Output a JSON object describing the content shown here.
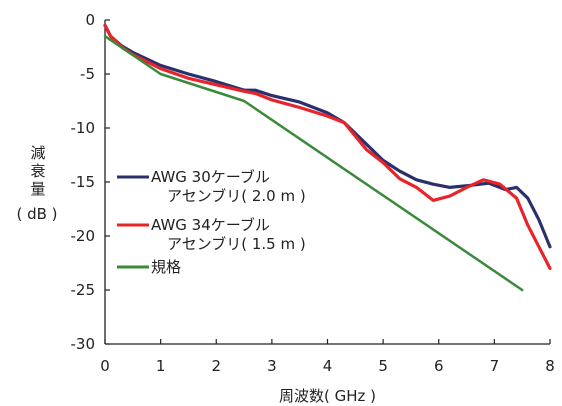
{
  "chart_data": {
    "type": "line",
    "xlabel": "周波数( GHz )",
    "ylabel_lines": [
      "減",
      "衰",
      "量",
      "( dB )"
    ],
    "xlim": [
      0,
      8
    ],
    "ylim": [
      -30,
      0
    ],
    "x_ticks": [
      "0",
      "1",
      "2",
      "3",
      "4",
      "5",
      "6",
      "7",
      "8"
    ],
    "y_ticks": [
      "0",
      "-5",
      "-10",
      "-15",
      "-20",
      "-25",
      "-30"
    ],
    "grid": false,
    "legend_position": "left-middle",
    "series": [
      {
        "name": "AWG 30ケーブル アセンブリ( 2.0 m )",
        "legend_lines": [
          "AWG 30ケーブル",
          "アセンブリ( 2.0 m )"
        ],
        "color": "#2b2f6b",
        "x": [
          0,
          0.1,
          0.3,
          0.5,
          1.0,
          1.5,
          2.0,
          2.5,
          2.7,
          3.0,
          3.5,
          4.0,
          4.3,
          4.7,
          5.0,
          5.3,
          5.6,
          5.9,
          6.2,
          6.6,
          6.9,
          7.2,
          7.4,
          7.6,
          7.8,
          8.0
        ],
        "values": [
          -0.5,
          -1.5,
          -2.4,
          -3.0,
          -4.2,
          -5.0,
          -5.7,
          -6.5,
          -6.5,
          -7.0,
          -7.6,
          -8.6,
          -9.5,
          -11.5,
          -13.0,
          -14.0,
          -14.8,
          -15.2,
          -15.5,
          -15.3,
          -15.1,
          -15.7,
          -15.5,
          -16.5,
          -18.5,
          -21.0
        ]
      },
      {
        "name": "AWG 34ケーブル アセンブリ( 1.5 m )",
        "legend_lines": [
          "AWG 34ケーブル",
          "アセンブリ( 1.5 m )"
        ],
        "color": "#e8242a",
        "x": [
          0,
          0.1,
          0.3,
          0.5,
          1.0,
          1.5,
          2.0,
          2.5,
          2.7,
          3.0,
          3.5,
          4.0,
          4.3,
          4.7,
          5.0,
          5.3,
          5.6,
          5.9,
          6.2,
          6.5,
          6.8,
          7.1,
          7.4,
          7.6,
          7.8,
          8.0
        ],
        "values": [
          -0.5,
          -1.5,
          -2.5,
          -3.2,
          -4.5,
          -5.4,
          -6.0,
          -6.6,
          -6.8,
          -7.4,
          -8.1,
          -8.9,
          -9.5,
          -12.0,
          -13.2,
          -14.7,
          -15.5,
          -16.7,
          -16.3,
          -15.5,
          -14.8,
          -15.2,
          -16.5,
          -19.0,
          -21.0,
          -23.0
        ]
      },
      {
        "name": "規格",
        "legend_lines": [
          "規格"
        ],
        "color": "#3a8a3a",
        "x": [
          0,
          1.0,
          2.5,
          7.5
        ],
        "values": [
          -1.5,
          -5.0,
          -7.5,
          -25.0
        ]
      }
    ]
  }
}
